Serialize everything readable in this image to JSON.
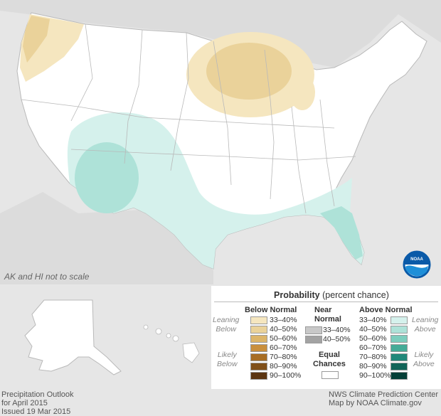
{
  "map": {
    "alt_note": "AK and HI not to scale",
    "logo_label": "NOAA"
  },
  "footer": {
    "left": [
      "Precipitation Outlook",
      "for April 2015",
      "Issued 19 Mar 2015"
    ],
    "right": [
      "NWS Climate Prediction Center",
      "Map by NOAA Climate.gov"
    ]
  },
  "legend": {
    "title": "Probability",
    "subtitle": "(percent chance)",
    "below": {
      "header": "Below Normal",
      "side_upper": [
        "Leaning",
        "Below"
      ],
      "side_lower": [
        "Likely",
        "Below"
      ],
      "items": [
        {
          "label": "33–40%",
          "color": "#f5e6bf"
        },
        {
          "label": "40–50%",
          "color": "#ead29a"
        },
        {
          "label": "50–60%",
          "color": "#dcb56a"
        },
        {
          "label": "60–70%",
          "color": "#c98f3d"
        },
        {
          "label": "70–80%",
          "color": "#a86e24"
        },
        {
          "label": "80–90%",
          "color": "#80501a"
        },
        {
          "label": "90–100%",
          "color": "#5b3512"
        }
      ]
    },
    "near": {
      "header": [
        "Near",
        "Normal"
      ],
      "items": [
        {
          "label": "33–40%",
          "color": "#c8c8c8"
        },
        {
          "label": "40–50%",
          "color": "#a3a3a3"
        }
      ],
      "equal": [
        "Equal",
        "Chances"
      ],
      "equal_color": "#ffffff"
    },
    "above": {
      "header": "Above Normal",
      "side_upper": [
        "Leaning",
        "Above"
      ],
      "side_lower": [
        "Likely",
        "Above"
      ],
      "items": [
        {
          "label": "33–40%",
          "color": "#d5f1ec"
        },
        {
          "label": "40–50%",
          "color": "#aee2d8"
        },
        {
          "label": "50–60%",
          "color": "#7dcdbd"
        },
        {
          "label": "60–70%",
          "color": "#45ab97"
        },
        {
          "label": "70–80%",
          "color": "#21887a"
        },
        {
          "label": "80–90%",
          "color": "#116458"
        },
        {
          "label": "90–100%",
          "color": "#053f37"
        }
      ]
    }
  }
}
